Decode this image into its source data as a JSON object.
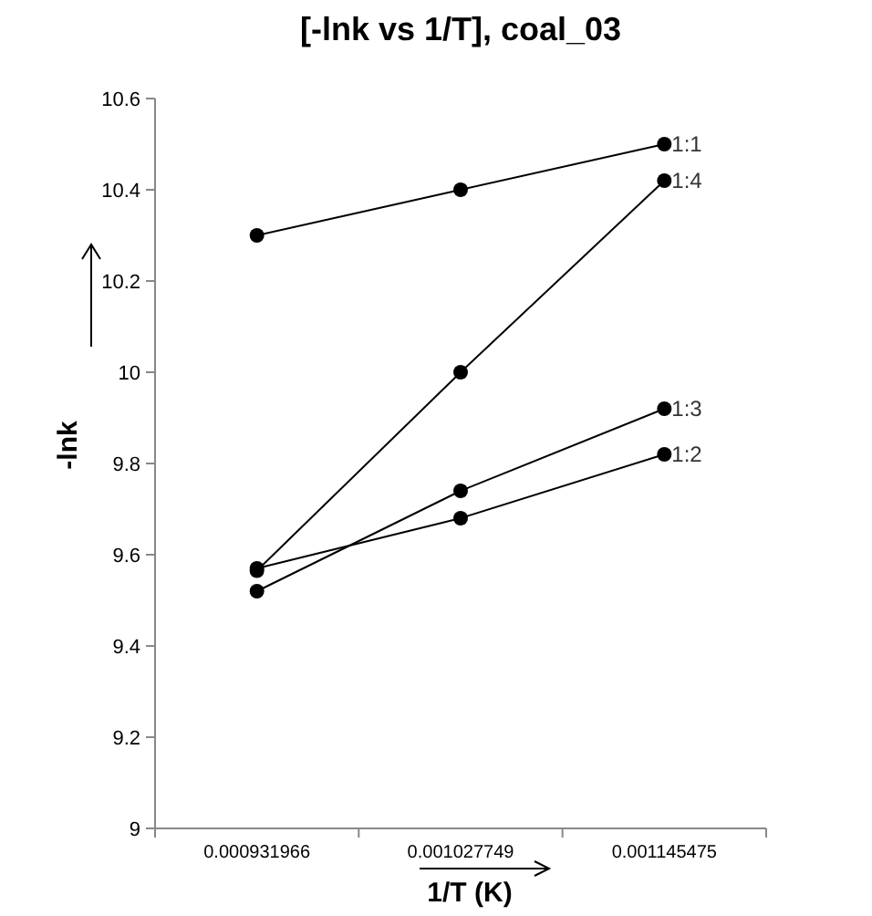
{
  "chart_data": {
    "type": "line",
    "title": "[-lnk vs 1/T], coal_03",
    "xlabel": "1/T (K)",
    "ylabel": "-lnk",
    "categories": [
      "0.000931966",
      "0.001027749",
      "0.001145475"
    ],
    "series": [
      {
        "name": "1:1",
        "color": "#000000",
        "values": [
          10.3,
          10.4,
          10.5
        ]
      },
      {
        "name": "1:4",
        "color": "#000000",
        "values": [
          9.565,
          10.0,
          10.42
        ]
      },
      {
        "name": "1:3",
        "color": "#000000",
        "values": [
          9.52,
          9.74,
          9.92
        ]
      },
      {
        "name": "1:2",
        "color": "#000000",
        "values": [
          9.57,
          9.68,
          9.82
        ]
      }
    ],
    "ylim": [
      9,
      10.6
    ],
    "yticks": [
      9,
      9.2,
      9.4,
      9.6,
      9.8,
      10,
      10.2,
      10.4,
      10.6
    ],
    "marker": "circle",
    "line_style": "solid",
    "grid": false
  }
}
